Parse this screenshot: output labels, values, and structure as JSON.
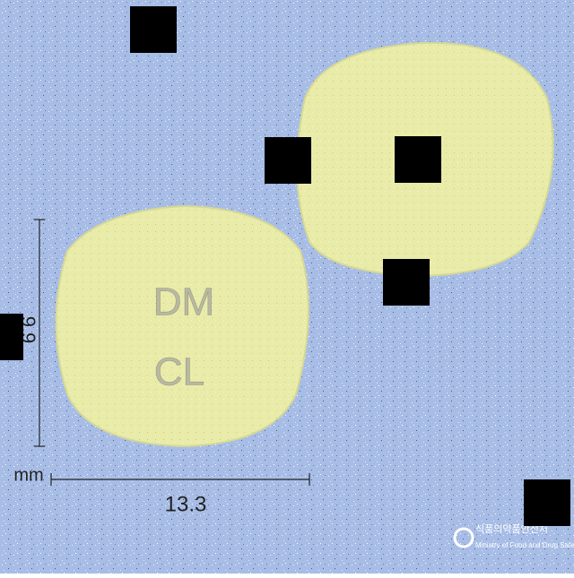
{
  "imprint": [
    "DM",
    "CL"
  ],
  "dimensions": {
    "height": "9.9",
    "width": "13.3",
    "unit": "mm"
  },
  "watermark": {
    "korean": "식품의약품안전처",
    "english": "Ministry of Food and Drug Safety"
  }
}
